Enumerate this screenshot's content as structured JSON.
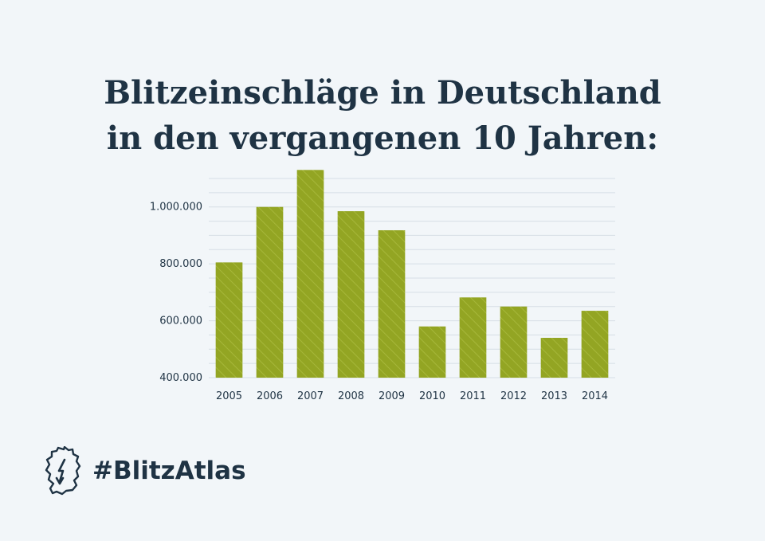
{
  "title": {
    "line1": "Blitzeinschläge in Deutschland",
    "line2": "in den vergangenen 10 Jahren:"
  },
  "footer": {
    "hashtag": "#BlitzAtlas",
    "logo_icon": "germany-map-lightning-icon"
  },
  "colors": {
    "background": "#f2f6f9",
    "bar": "#93a523",
    "bar_stripe": "#a6b73a",
    "text": "#1f3344",
    "grid": "#d6dee6"
  },
  "chart_data": {
    "type": "bar",
    "title": "",
    "xlabel": "",
    "ylabel": "",
    "categories": [
      "2005",
      "2006",
      "2007",
      "2008",
      "2009",
      "2010",
      "2011",
      "2012",
      "2013",
      "2014"
    ],
    "values": [
      805000,
      1000000,
      1130000,
      985000,
      918000,
      580000,
      682000,
      650000,
      540000,
      635000
    ],
    "yticks": [
      400000,
      600000,
      800000,
      1000000
    ],
    "ytick_labels": [
      "400.000",
      "600.000",
      "800.000",
      "1.000.000"
    ],
    "ylim": [
      400000,
      1100000
    ],
    "grid": true,
    "legend": "none"
  }
}
